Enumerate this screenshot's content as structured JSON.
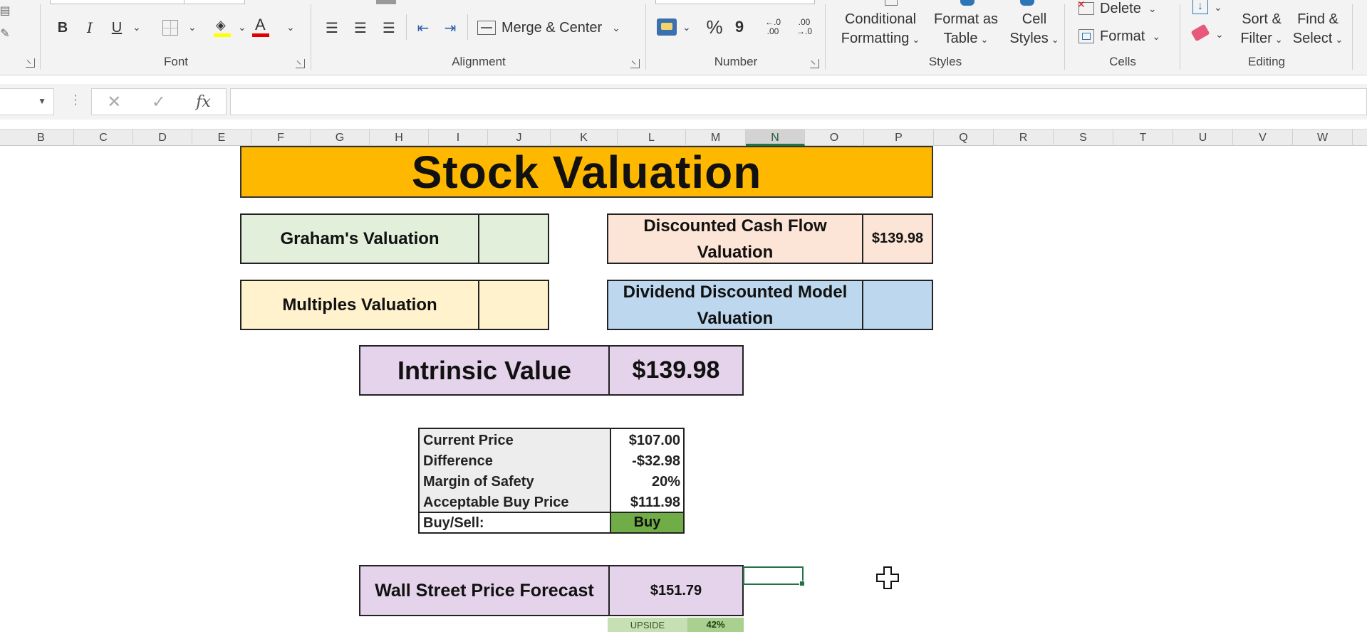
{
  "ribbon": {
    "font_group": {
      "label": "Font",
      "bold": "B",
      "italic": "I",
      "underline": "U",
      "font_color_glyph": "A"
    },
    "alignment_group": {
      "label": "Alignment",
      "merge_center": "Merge & Center"
    },
    "number_group": {
      "label": "Number",
      "percent": "%",
      "comma": "9",
      "inc_decimal": "←.0 .00",
      "dec_decimal": ".00 →.0"
    },
    "styles_group": {
      "label": "Styles",
      "conditional_formatting": [
        "Conditional",
        "Formatting"
      ],
      "format_as_table": [
        "Format as",
        "Table"
      ],
      "cell_styles": [
        "Cell",
        "Styles"
      ]
    },
    "cells_group": {
      "label": "Cells",
      "delete": "Delete",
      "format": "Format"
    },
    "editing_group": {
      "label": "Editing",
      "sort_filter": [
        "Sort &",
        "Filter"
      ],
      "find_select": [
        "Find &",
        "Select"
      ]
    }
  },
  "formula_bar": {
    "fx": "fx",
    "cancel": "✕",
    "enter": "✓"
  },
  "columns": [
    "B",
    "C",
    "D",
    "E",
    "F",
    "G",
    "H",
    "I",
    "J",
    "K",
    "L",
    "M",
    "N",
    "O",
    "P",
    "Q",
    "R",
    "S",
    "T",
    "U",
    "V",
    "W"
  ],
  "sheet": {
    "title": "Stock Valuation",
    "graham": {
      "label": "Graham's Valuation",
      "value": ""
    },
    "multiples": {
      "label": "Multiples Valuation",
      "value": ""
    },
    "dcf": {
      "label_line1": "Discounted Cash Flow",
      "label_line2": "Valuation",
      "value": "$139.98"
    },
    "ddm": {
      "label_line1": "Dividend Discounted Model",
      "label_line2": "Valuation",
      "value": ""
    },
    "intrinsic": {
      "label": "Intrinsic Value",
      "value": "$139.98"
    },
    "summary": {
      "current_price": {
        "label": "Current Price",
        "value": "$107.00"
      },
      "difference": {
        "label": "Difference",
        "value": "-$32.98"
      },
      "margin_of_safety": {
        "label": "Margin of Safety",
        "value": "20%"
      },
      "acceptable_buy_price": {
        "label": "Acceptable Buy Price",
        "value": "$111.98"
      },
      "buy_sell": {
        "label": "Buy/Sell:",
        "value": "Buy"
      }
    },
    "wall_street": {
      "label": "Wall Street Price Forecast",
      "value": "$151.79"
    },
    "upside": {
      "label": "UPSIDE",
      "value": "42%"
    }
  },
  "colors": {
    "title_bg": "#ffb800",
    "graham_bg": "#e2efda",
    "multiples_bg": "#fff2cc",
    "dcf_bg": "#fce4d6",
    "ddm_bg": "#bdd7ee",
    "intrinsic_bg": "#e4d3ea",
    "buy_bg": "#70ad47",
    "excel_green": "#217346"
  }
}
